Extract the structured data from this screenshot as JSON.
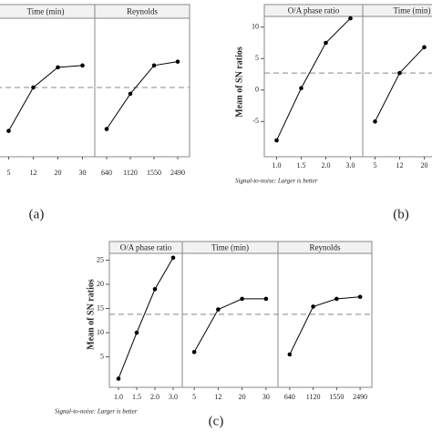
{
  "chart_data": [
    {
      "type": "line",
      "label": "(a)",
      "color": "#000000",
      "reference_line": 0.4,
      "ylim": [
        -10.6,
        11.4
      ],
      "panels": [
        {
          "title": "Time (min)",
          "categories": [
            "5",
            "12",
            "20",
            "30"
          ],
          "values": [
            -6.5,
            0.4,
            3.6,
            3.9
          ]
        },
        {
          "title": "Reynolds",
          "categories": [
            "640",
            "1120",
            "1550",
            "2490"
          ],
          "values": [
            -6.2,
            -0.6,
            3.9,
            4.5
          ]
        }
      ]
    },
    {
      "type": "line",
      "label": "(b)",
      "color": "#000000",
      "y_label": "Mean of SN ratios",
      "footnote": "Signal-to-noise: Larger is better",
      "reference_line": 2.7,
      "ylim": [
        -10.6,
        11.7
      ],
      "yticks": [
        -5,
        0,
        5,
        10
      ],
      "panels": [
        {
          "title": "O/A phase ratio",
          "categories": [
            "1.0",
            "1.5",
            "2.0",
            "3.0"
          ],
          "values": [
            -8,
            0.3,
            7.5,
            11.4
          ]
        },
        {
          "title": "Time (min)",
          "categories": [
            "5",
            "12",
            "20"
          ],
          "values": [
            -5,
            2.7,
            6.8
          ]
        }
      ]
    },
    {
      "type": "line",
      "label": "(c)",
      "color": "#000000",
      "y_label": "Mean of SN ratios",
      "footnote": "Signal-to-noise: Larger is better",
      "reference_line": 13.8,
      "ylim": [
        -1.3,
        26.4
      ],
      "yticks": [
        5,
        10,
        15,
        20,
        25
      ],
      "panels": [
        {
          "title": "O/A phase ratio",
          "categories": [
            "1.0",
            "1.5",
            "2.0",
            "3.0"
          ],
          "values": [
            0.5,
            10,
            19,
            25.5
          ]
        },
        {
          "title": "Time (min)",
          "categories": [
            "5",
            "12",
            "20",
            "30"
          ],
          "values": [
            6,
            14.8,
            17,
            17
          ]
        },
        {
          "title": "Reynolds",
          "categories": [
            "640",
            "1120",
            "1550",
            "2490"
          ],
          "values": [
            5.5,
            15.4,
            17,
            17.4
          ]
        }
      ]
    }
  ]
}
